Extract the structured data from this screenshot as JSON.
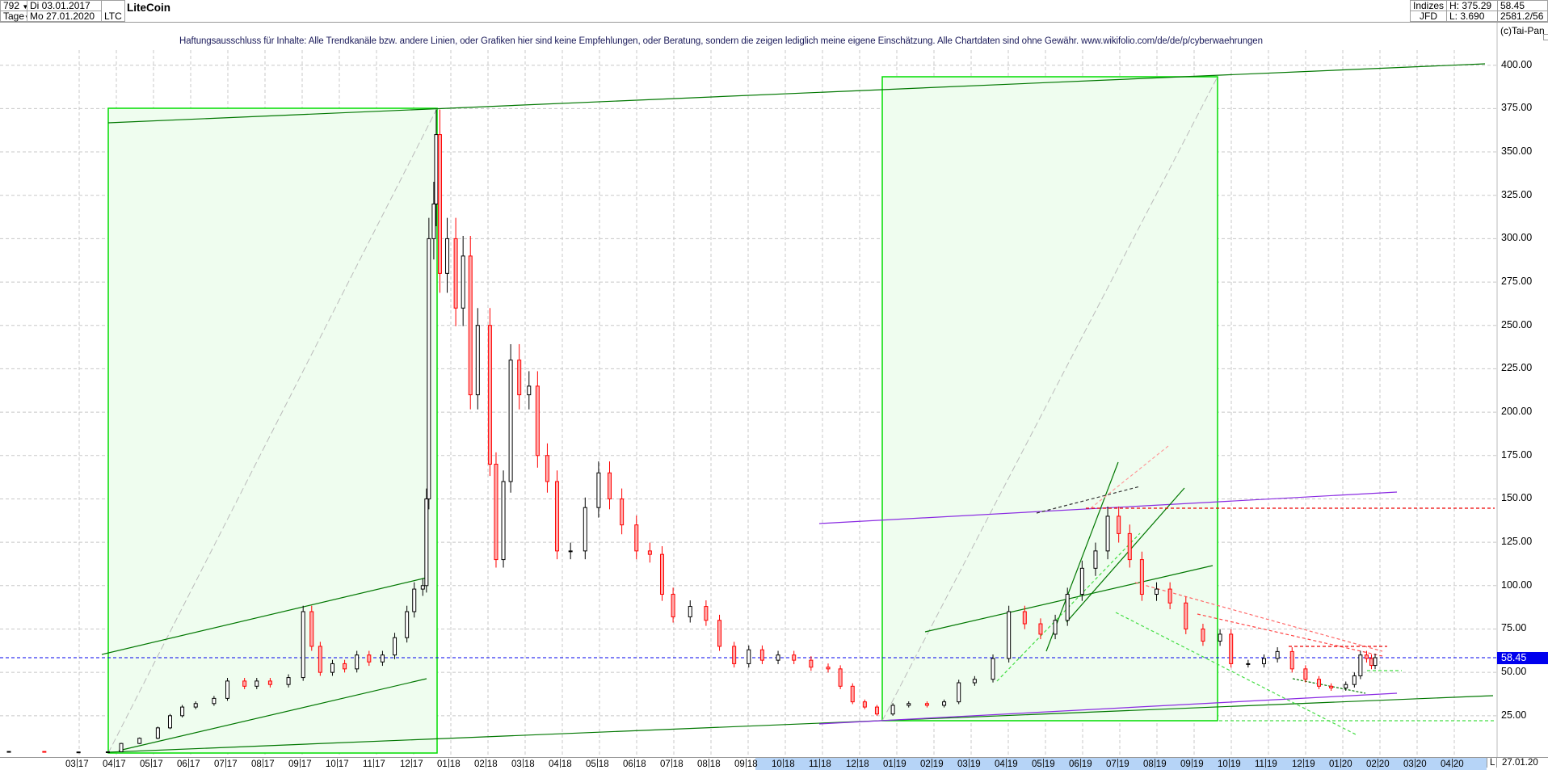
{
  "header": {
    "bars_count": "792",
    "start_date": "Di 03.01.2017",
    "period": "Tage",
    "end_date": "Mo 27.01.2020",
    "symbol": "LTC",
    "name": "LiteCoin",
    "source_top": "Indizes",
    "source_bottom": "JFD",
    "high": "H: 375.29",
    "low": "L: 3.690",
    "last": "58.45",
    "extra": "2581.2/56",
    "copyright": "(c)Tai-Pan"
  },
  "disclaimer": "Haftungsausschluss für Inhalte: Alle Trendkanäle bzw. andere Linien, oder Grafiken hier sind keine Empfehlungen, oder Beratung, sondern die zeigen lediglich meine eigene Einschätzung. Alle Chartdaten sind ohne Gewähr.  www.wikifolio.com/de/de/p/cyberwaehrungen",
  "colors": {
    "up_candle": "#000000",
    "down_candle": "#ff0000",
    "current_price_line": "#0000ee",
    "box_fill": "#effdef",
    "box_border": "#00dd00",
    "trendline": "#007700",
    "channel_purple": "#8a2be2",
    "axis_highlight": "#b6d4f7"
  },
  "chart_data": {
    "type": "candlestick",
    "title": "LiteCoin",
    "ylim": [
      0,
      410
    ],
    "y_ticks": [
      "25.00",
      "50.00",
      "75.00",
      "100.00",
      "125.00",
      "150.00",
      "175.00",
      "200.00",
      "225.00",
      "250.00",
      "275.00",
      "300.00",
      "325.00",
      "350.00",
      "375.00",
      "400.00"
    ],
    "current_price": 58.45,
    "current_price_label": "58.45",
    "grid": true,
    "x_ticks": [
      {
        "m": "03",
        "y": "17"
      },
      {
        "m": "04",
        "y": "17"
      },
      {
        "m": "05",
        "y": "17"
      },
      {
        "m": "06",
        "y": "17"
      },
      {
        "m": "07",
        "y": "17"
      },
      {
        "m": "08",
        "y": "17"
      },
      {
        "m": "09",
        "y": "17"
      },
      {
        "m": "10",
        "y": "17"
      },
      {
        "m": "11",
        "y": "17"
      },
      {
        "m": "12",
        "y": "17"
      },
      {
        "m": "01",
        "y": "18"
      },
      {
        "m": "02",
        "y": "18"
      },
      {
        "m": "03",
        "y": "18"
      },
      {
        "m": "04",
        "y": "18"
      },
      {
        "m": "05",
        "y": "18"
      },
      {
        "m": "06",
        "y": "18"
      },
      {
        "m": "07",
        "y": "18"
      },
      {
        "m": "08",
        "y": "18"
      },
      {
        "m": "09",
        "y": "18"
      },
      {
        "m": "10",
        "y": "18"
      },
      {
        "m": "11",
        "y": "18"
      },
      {
        "m": "12",
        "y": "18"
      },
      {
        "m": "01",
        "y": "19"
      },
      {
        "m": "02",
        "y": "19"
      },
      {
        "m": "03",
        "y": "19"
      },
      {
        "m": "04",
        "y": "19"
      },
      {
        "m": "05",
        "y": "19"
      },
      {
        "m": "06",
        "y": "19"
      },
      {
        "m": "07",
        "y": "19"
      },
      {
        "m": "08",
        "y": "19"
      },
      {
        "m": "09",
        "y": "19"
      },
      {
        "m": "10",
        "y": "19"
      },
      {
        "m": "11",
        "y": "19"
      },
      {
        "m": "12",
        "y": "19"
      },
      {
        "m": "01",
        "y": "20"
      },
      {
        "m": "02",
        "y": "20"
      },
      {
        "m": "03",
        "y": "20"
      },
      {
        "m": "04",
        "y": "20"
      }
    ],
    "axis_end_marker": "L",
    "axis_end_date": "27.01.20",
    "closes": [
      [
        "2017-01-03",
        4.4
      ],
      [
        "2017-02-01",
        4.0
      ],
      [
        "2017-03-01",
        4.1
      ],
      [
        "2017-03-25",
        4.2
      ],
      [
        "2017-04-05",
        9
      ],
      [
        "2017-04-20",
        12
      ],
      [
        "2017-05-05",
        18
      ],
      [
        "2017-05-15",
        25
      ],
      [
        "2017-05-25",
        30
      ],
      [
        "2017-06-05",
        32
      ],
      [
        "2017-06-20",
        35
      ],
      [
        "2017-07-01",
        45
      ],
      [
        "2017-07-15",
        42
      ],
      [
        "2017-07-25",
        45
      ],
      [
        "2017-08-05",
        43
      ],
      [
        "2017-08-20",
        47
      ],
      [
        "2017-09-01",
        85
      ],
      [
        "2017-09-08",
        65
      ],
      [
        "2017-09-15",
        50
      ],
      [
        "2017-09-25",
        55
      ],
      [
        "2017-10-05",
        52
      ],
      [
        "2017-10-15",
        60
      ],
      [
        "2017-10-25",
        56
      ],
      [
        "2017-11-05",
        60
      ],
      [
        "2017-11-15",
        70
      ],
      [
        "2017-11-25",
        85
      ],
      [
        "2017-12-01",
        98
      ],
      [
        "2017-12-08",
        100
      ],
      [
        "2017-12-11",
        150
      ],
      [
        "2017-12-13",
        300
      ],
      [
        "2017-12-17",
        320
      ],
      [
        "2017-12-19",
        360
      ],
      [
        "2017-12-22",
        280
      ],
      [
        "2017-12-28",
        300
      ],
      [
        "2018-01-04",
        260
      ],
      [
        "2018-01-10",
        290
      ],
      [
        "2018-01-16",
        210
      ],
      [
        "2018-01-22",
        250
      ],
      [
        "2018-02-01",
        170
      ],
      [
        "2018-02-06",
        115
      ],
      [
        "2018-02-12",
        160
      ],
      [
        "2018-02-18",
        230
      ],
      [
        "2018-02-25",
        210
      ],
      [
        "2018-03-05",
        215
      ],
      [
        "2018-03-12",
        175
      ],
      [
        "2018-03-20",
        160
      ],
      [
        "2018-03-28",
        120
      ],
      [
        "2018-04-08",
        120
      ],
      [
        "2018-04-20",
        145
      ],
      [
        "2018-05-01",
        165
      ],
      [
        "2018-05-10",
        150
      ],
      [
        "2018-05-20",
        135
      ],
      [
        "2018-06-01",
        120
      ],
      [
        "2018-06-12",
        118
      ],
      [
        "2018-06-22",
        95
      ],
      [
        "2018-07-01",
        82
      ],
      [
        "2018-07-15",
        88
      ],
      [
        "2018-07-28",
        80
      ],
      [
        "2018-08-08",
        65
      ],
      [
        "2018-08-20",
        55
      ],
      [
        "2018-09-01",
        63
      ],
      [
        "2018-09-12",
        57
      ],
      [
        "2018-09-25",
        60
      ],
      [
        "2018-10-08",
        57
      ],
      [
        "2018-10-22",
        53
      ],
      [
        "2018-11-05",
        52
      ],
      [
        "2018-11-15",
        42
      ],
      [
        "2018-11-25",
        33
      ],
      [
        "2018-12-05",
        30
      ],
      [
        "2018-12-15",
        26
      ],
      [
        "2018-12-28",
        31
      ],
      [
        "2019-01-10",
        32
      ],
      [
        "2019-01-25",
        31
      ],
      [
        "2019-02-08",
        33
      ],
      [
        "2019-02-20",
        44
      ],
      [
        "2019-03-05",
        46
      ],
      [
        "2019-03-20",
        58
      ],
      [
        "2019-04-02",
        85
      ],
      [
        "2019-04-15",
        78
      ],
      [
        "2019-04-28",
        72
      ],
      [
        "2019-05-10",
        80
      ],
      [
        "2019-05-20",
        95
      ],
      [
        "2019-06-01",
        110
      ],
      [
        "2019-06-12",
        120
      ],
      [
        "2019-06-22",
        140
      ],
      [
        "2019-07-01",
        130
      ],
      [
        "2019-07-10",
        115
      ],
      [
        "2019-07-20",
        95
      ],
      [
        "2019-08-01",
        98
      ],
      [
        "2019-08-12",
        90
      ],
      [
        "2019-08-25",
        75
      ],
      [
        "2019-09-08",
        68
      ],
      [
        "2019-09-22",
        72
      ],
      [
        "2019-10-01",
        55
      ],
      [
        "2019-10-15",
        55
      ],
      [
        "2019-10-28",
        58
      ],
      [
        "2019-11-08",
        62
      ],
      [
        "2019-11-20",
        52
      ],
      [
        "2019-12-01",
        46
      ],
      [
        "2019-12-12",
        42
      ],
      [
        "2019-12-22",
        41
      ],
      [
        "2020-01-03",
        43
      ],
      [
        "2020-01-10",
        48
      ],
      [
        "2020-01-15",
        60
      ],
      [
        "2020-01-20",
        58
      ],
      [
        "2020-01-24",
        54
      ],
      [
        "2020-01-27",
        58.45
      ]
    ]
  }
}
